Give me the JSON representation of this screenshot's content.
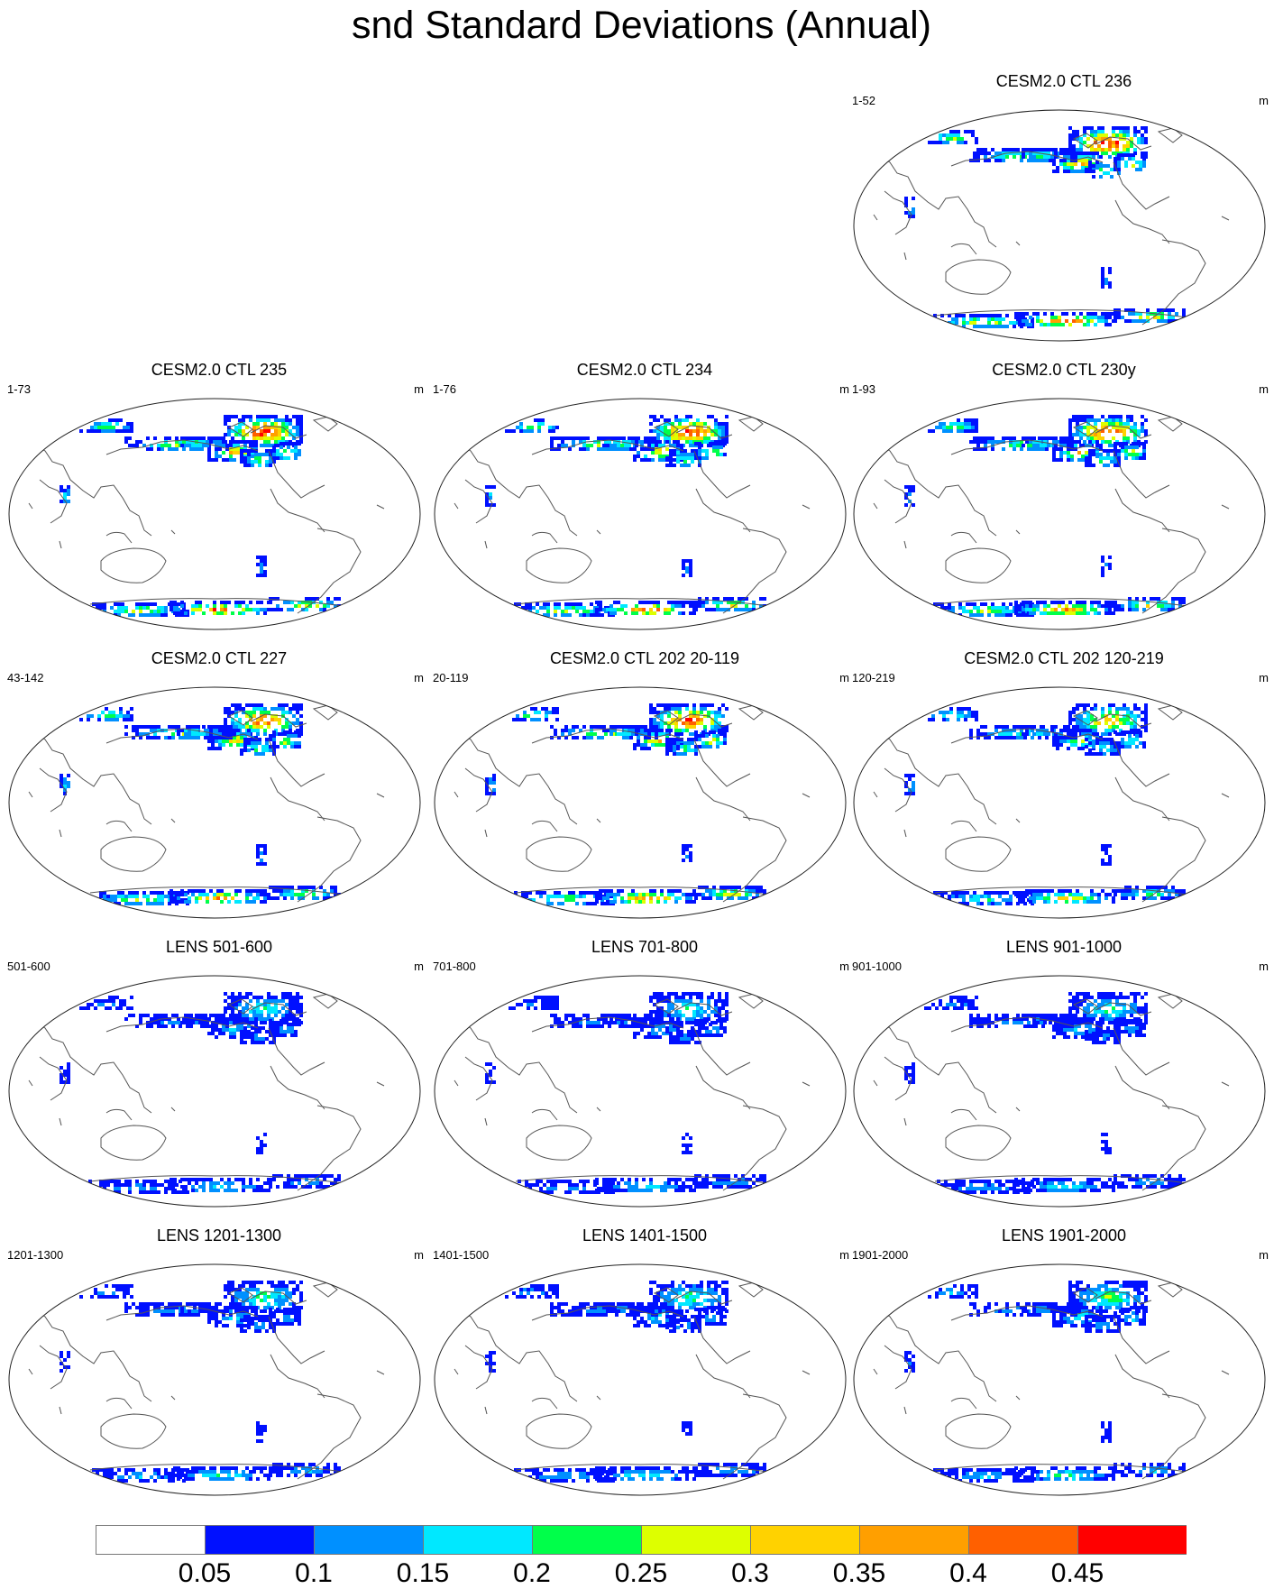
{
  "title": "snd Standard Deviations (Annual)",
  "units": "m",
  "colormap": {
    "colors": [
      "#ffffff",
      "#0010ff",
      "#0090ff",
      "#00e8ff",
      "#00ff4a",
      "#ddff00",
      "#ffd200",
      "#ff9f00",
      "#ff6000",
      "#ff0000"
    ],
    "levels": [
      "0.05",
      "0.1",
      "0.15",
      "0.2",
      "0.25",
      "0.3",
      "0.35",
      "0.4",
      "0.45"
    ]
  },
  "panels": [
    {
      "title": "CESM2.0 CTL 236",
      "range": "1-52",
      "intensity": 1.0
    },
    {
      "title": "CESM2.0 CTL 235",
      "range": "1-73",
      "intensity": 1.0
    },
    {
      "title": "CESM2.0 CTL 234",
      "range": "1-76",
      "intensity": 1.0
    },
    {
      "title": "CESM2.0 CTL 230y",
      "range": "1-93",
      "intensity": 0.95
    },
    {
      "title": "CESM2.0 CTL 227",
      "range": "43-142",
      "intensity": 0.9
    },
    {
      "title": "CESM2.0 CTL 202 20-119",
      "range": "20-119",
      "intensity": 0.95
    },
    {
      "title": "CESM2.0 CTL 202 120-219",
      "range": "120-219",
      "intensity": 0.7
    },
    {
      "title": "LENS 501-600",
      "range": "501-600",
      "intensity": 0.35
    },
    {
      "title": "LENS 701-800",
      "range": "701-800",
      "intensity": 0.35
    },
    {
      "title": "LENS 901-1000",
      "range": "901-1000",
      "intensity": 0.35
    },
    {
      "title": "LENS 1201-1300",
      "range": "1201-1300",
      "intensity": 0.4
    },
    {
      "title": "LENS 1401-1500",
      "range": "1401-1500",
      "intensity": 0.4
    },
    {
      "title": "LENS 1901-2000",
      "range": "1901-2000",
      "intensity": 0.45
    }
  ]
}
